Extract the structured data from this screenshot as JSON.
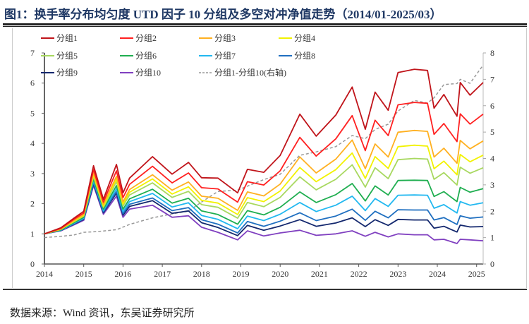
{
  "title": "图1：换手率分布均匀度 UTD 因子 10 分组及多空对冲净值走势（2014/01-2025/03）",
  "source": "数据来源：Wind 资讯，东吴证券研究所",
  "chart_data": {
    "type": "line",
    "title": "图1：换手率分布均匀度 UTD 因子 10 分组及多空对冲净值走势（2014/01-2025/03）",
    "x": [
      "2014-01",
      "2014-06",
      "2014-10",
      "2015-01",
      "2015-04",
      "2015-07",
      "2015-11",
      "2016-01",
      "2016-03",
      "2016-10",
      "2017-04",
      "2017-09",
      "2018-01",
      "2018-06",
      "2018-12",
      "2019-03",
      "2019-08",
      "2020-01",
      "2020-07",
      "2020-12",
      "2021-06",
      "2021-11",
      "2022-03",
      "2022-06",
      "2022-10",
      "2023-01",
      "2023-06",
      "2023-10",
      "2023-12",
      "2024-03",
      "2024-07",
      "2024-08",
      "2024-11",
      "2025-03"
    ],
    "x_ticks": [
      "2014",
      "2015",
      "2016",
      "2017",
      "2018",
      "2019",
      "2020",
      "2021",
      "2022",
      "2023",
      "2024",
      "2025"
    ],
    "y_left": {
      "range": [
        0,
        7
      ],
      "ticks": [
        "0",
        "1",
        "2",
        "3",
        "4",
        "5",
        "6",
        "7"
      ]
    },
    "y_right": {
      "range": [
        0,
        8
      ],
      "ticks": [
        "0",
        "1",
        "2",
        "3",
        "4",
        "5",
        "6",
        "7",
        "8"
      ]
    },
    "grid": false,
    "legend_placement": "top",
    "series": [
      {
        "name": "分组1",
        "color": "#c0141a",
        "axis": "left",
        "dash": false,
        "values": [
          1.0,
          1.2,
          1.52,
          1.75,
          3.26,
          2.15,
          3.3,
          2.36,
          2.85,
          3.56,
          2.98,
          3.37,
          2.86,
          2.85,
          2.36,
          3.14,
          3.04,
          3.6,
          4.97,
          4.24,
          4.94,
          5.87,
          4.47,
          5.7,
          5.1,
          6.35,
          6.46,
          6.42,
          5.17,
          5.62,
          4.9,
          6.02,
          5.6,
          6.02
        ]
      },
      {
        "name": "分组2",
        "color": "#ff2020",
        "axis": "left",
        "dash": false,
        "values": [
          1.0,
          1.18,
          1.48,
          1.69,
          3.13,
          2.05,
          3.09,
          2.2,
          2.64,
          3.24,
          2.69,
          3.02,
          2.53,
          2.49,
          2.05,
          2.73,
          2.62,
          3.09,
          4.2,
          3.58,
          4.15,
          4.92,
          3.76,
          4.77,
          4.26,
          5.28,
          5.36,
          5.33,
          4.3,
          4.66,
          4.06,
          4.98,
          4.64,
          4.97
        ]
      },
      {
        "name": "分组3",
        "color": "#ffb020",
        "axis": "left",
        "dash": false,
        "values": [
          1.0,
          1.16,
          1.44,
          1.64,
          3.02,
          1.97,
          2.91,
          2.06,
          2.47,
          2.96,
          2.45,
          2.72,
          2.25,
          2.18,
          1.78,
          2.39,
          2.26,
          2.65,
          3.55,
          3.02,
          3.48,
          4.11,
          3.16,
          3.98,
          3.55,
          4.37,
          4.43,
          4.4,
          3.55,
          3.84,
          3.34,
          4.1,
          3.82,
          4.08
        ]
      },
      {
        "name": "分组4",
        "color": "#f2f200",
        "axis": "left",
        "dash": false,
        "values": [
          1.0,
          1.15,
          1.42,
          1.61,
          2.96,
          1.92,
          2.82,
          1.99,
          2.38,
          2.82,
          2.32,
          2.56,
          2.11,
          2.02,
          1.64,
          2.2,
          2.07,
          2.42,
          3.2,
          2.73,
          3.13,
          3.68,
          2.84,
          3.56,
          3.17,
          3.89,
          3.94,
          3.91,
          3.16,
          3.41,
          2.96,
          3.63,
          3.39,
          3.61
        ]
      },
      {
        "name": "分组5",
        "color": "#a8d860",
        "axis": "left",
        "dash": false,
        "values": [
          1.0,
          1.15,
          1.4,
          1.59,
          2.9,
          1.88,
          2.73,
          1.92,
          2.29,
          2.69,
          2.21,
          2.41,
          1.97,
          1.88,
          1.52,
          2.04,
          1.9,
          2.21,
          2.89,
          2.46,
          2.81,
          3.29,
          2.55,
          3.19,
          2.83,
          3.46,
          3.5,
          3.48,
          2.81,
          3.03,
          2.62,
          3.21,
          3.01,
          3.19
        ]
      },
      {
        "name": "分组6",
        "color": "#1fae50",
        "axis": "left",
        "dash": false,
        "values": [
          1.0,
          1.13,
          1.37,
          1.55,
          2.82,
          1.82,
          2.6,
          1.82,
          2.16,
          2.48,
          2.02,
          2.18,
          1.76,
          1.64,
          1.32,
          1.77,
          1.63,
          1.88,
          2.39,
          2.04,
          2.3,
          2.67,
          2.09,
          2.59,
          2.29,
          2.77,
          2.78,
          2.77,
          2.24,
          2.4,
          2.07,
          2.54,
          2.38,
          2.5
        ]
      },
      {
        "name": "分组7",
        "color": "#22b8f0",
        "axis": "left",
        "dash": false,
        "values": [
          1.0,
          1.12,
          1.35,
          1.52,
          2.76,
          1.77,
          2.5,
          1.74,
          2.07,
          2.34,
          1.89,
          2.03,
          1.61,
          1.48,
          1.17,
          1.59,
          1.44,
          1.65,
          2.04,
          1.74,
          1.95,
          2.25,
          1.77,
          2.17,
          1.91,
          2.28,
          2.29,
          2.28,
          1.85,
          1.97,
          1.69,
          2.07,
          1.95,
          2.03
        ]
      },
      {
        "name": "分组8",
        "color": "#1f6fc0",
        "axis": "left",
        "dash": false,
        "values": [
          1.0,
          1.12,
          1.33,
          1.5,
          2.7,
          1.73,
          2.41,
          1.67,
          1.98,
          2.19,
          1.77,
          1.87,
          1.47,
          1.32,
          1.03,
          1.41,
          1.25,
          1.42,
          1.7,
          1.44,
          1.59,
          1.82,
          1.45,
          1.75,
          1.53,
          1.8,
          1.79,
          1.79,
          1.46,
          1.54,
          1.31,
          1.6,
          1.52,
          1.56
        ]
      },
      {
        "name": "分组9",
        "color": "#14286e",
        "axis": "left",
        "dash": false,
        "values": [
          1.0,
          1.11,
          1.32,
          1.48,
          2.66,
          1.7,
          2.35,
          1.62,
          1.91,
          2.1,
          1.68,
          1.76,
          1.37,
          1.21,
          0.94,
          1.28,
          1.12,
          1.26,
          1.47,
          1.25,
          1.36,
          1.53,
          1.24,
          1.47,
          1.28,
          1.48,
          1.46,
          1.46,
          1.19,
          1.25,
          1.06,
          1.29,
          1.23,
          1.24
        ]
      },
      {
        "name": "分组10",
        "color": "#8040c0",
        "axis": "left",
        "dash": false,
        "values": [
          1.0,
          1.1,
          1.3,
          1.45,
          2.6,
          1.65,
          2.25,
          1.55,
          1.82,
          1.95,
          1.55,
          1.6,
          1.22,
          1.05,
          0.8,
          1.1,
          0.93,
          1.03,
          1.12,
          0.95,
          1.0,
          1.1,
          0.92,
          1.05,
          0.9,
          1.0,
          0.97,
          0.97,
          0.8,
          0.82,
          0.68,
          0.82,
          0.8,
          0.77
        ]
      },
      {
        "name": "分组1-分组10(右轴)",
        "color": "#999999",
        "axis": "right",
        "dash": true,
        "values": [
          1.0,
          1.05,
          1.1,
          1.2,
          1.22,
          1.25,
          1.3,
          1.4,
          1.5,
          1.75,
          1.9,
          2.0,
          2.35,
          2.75,
          2.8,
          2.95,
          3.2,
          3.4,
          4.12,
          4.25,
          4.45,
          4.87,
          4.75,
          5.1,
          5.3,
          5.8,
          6.2,
          6.1,
          6.3,
          6.8,
          6.84,
          7.0,
          6.85,
          7.54
        ]
      }
    ]
  }
}
